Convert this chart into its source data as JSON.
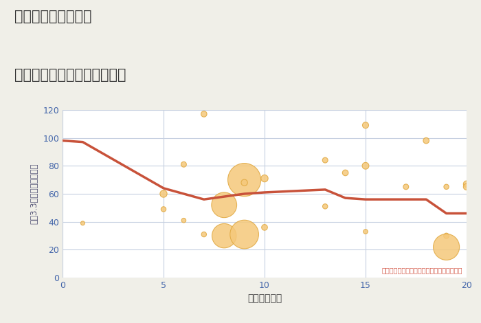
{
  "title_line1": "岐阜県関市市平賀の",
  "title_line2": "駅距離別中古マンション価格",
  "xlabel": "駅距離（分）",
  "ylabel": "坪（3.3㎡）単価（万円）",
  "background_color": "#f0efe8",
  "plot_bg_color": "#ffffff",
  "grid_color": "#c5cfe0",
  "title_color": "#333333",
  "annotation_color": "#d45a4a",
  "annotation_text": "円の大きさは、取引のあった物件面積を示す",
  "xlim": [
    0,
    20
  ],
  "ylim": [
    0,
    120
  ],
  "xticks": [
    0,
    5,
    10,
    15,
    20
  ],
  "yticks": [
    0,
    20,
    40,
    60,
    80,
    100,
    120
  ],
  "line_color": "#c8523a",
  "line_x": [
    0,
    1,
    5,
    7,
    9,
    10,
    13,
    14,
    15,
    18,
    19,
    20
  ],
  "line_y": [
    98,
    97,
    64,
    56,
    60,
    61,
    63,
    57,
    56,
    56,
    46,
    46
  ],
  "scatter_x": [
    1,
    5,
    5,
    6,
    6,
    7,
    7,
    8,
    8,
    9,
    9,
    9,
    10,
    10,
    13,
    13,
    14,
    15,
    15,
    15,
    17,
    18,
    19,
    19,
    19,
    20,
    20
  ],
  "scatter_y": [
    39,
    60,
    49,
    81,
    41,
    117,
    31,
    52,
    30,
    70,
    68,
    31,
    71,
    36,
    84,
    51,
    75,
    109,
    80,
    33,
    65,
    98,
    30,
    22,
    65,
    67,
    65
  ],
  "scatter_size": [
    18,
    55,
    28,
    32,
    22,
    38,
    28,
    700,
    650,
    1200,
    45,
    900,
    55,
    38,
    32,
    28,
    38,
    42,
    50,
    22,
    32,
    38,
    32,
    750,
    28,
    45,
    45
  ],
  "scatter_color": "#f5c87a",
  "scatter_edge_color": "#e0a840",
  "scatter_alpha": 0.85
}
